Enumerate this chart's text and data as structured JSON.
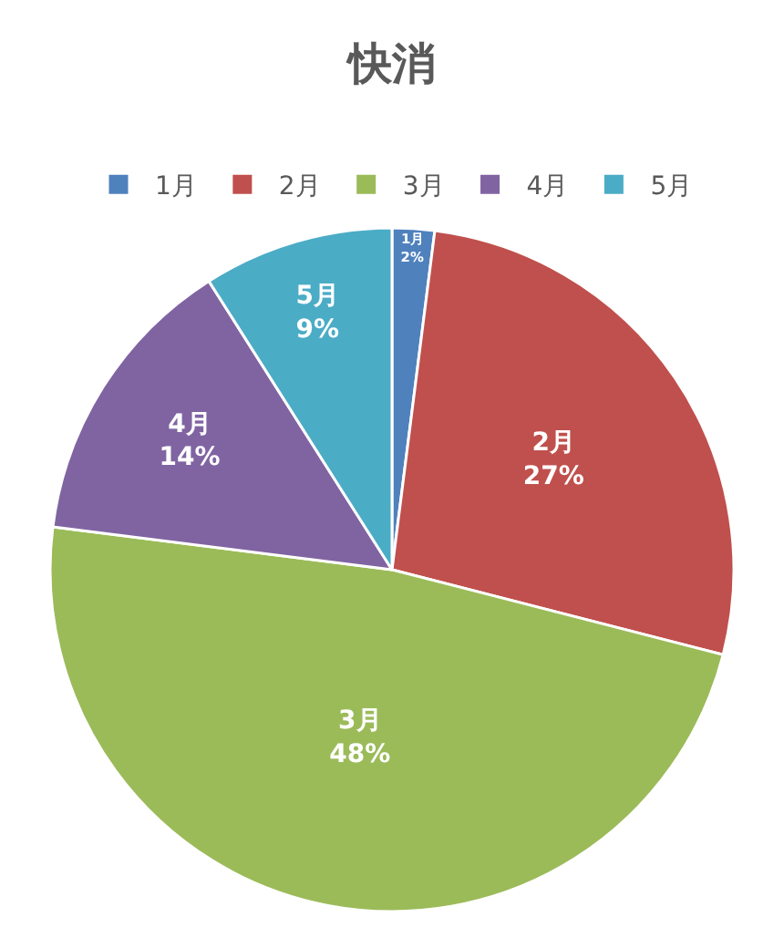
{
  "chart_data": {
    "type": "pie",
    "title": "快消",
    "categories": [
      "1月",
      "2月",
      "3月",
      "4月",
      "5月"
    ],
    "values": [
      2,
      27,
      48,
      14,
      9
    ],
    "colors": [
      "#4f81bd",
      "#c0504d",
      "#9bbb59",
      "#8064a2",
      "#4bacc6"
    ],
    "value_labels": [
      "2%",
      "27%",
      "48%",
      "14%",
      "9%"
    ],
    "legend": "top"
  }
}
